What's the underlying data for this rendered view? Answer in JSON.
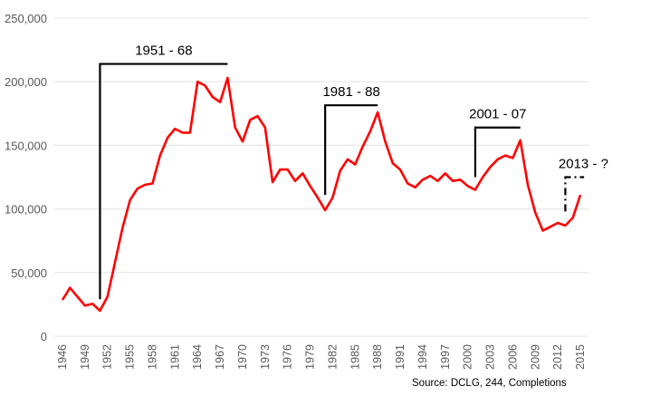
{
  "chart_data": {
    "type": "line",
    "title": "",
    "xlabel": "",
    "ylabel": "",
    "ylim": [
      0,
      250000
    ],
    "xlim": [
      1946,
      2015
    ],
    "yticks": [
      0,
      50000,
      100000,
      150000,
      200000,
      250000
    ],
    "ytick_labels": [
      "0",
      "50,000",
      "100,000",
      "150,000",
      "200,000",
      "250,000"
    ],
    "xtick_labels": [
      "1946",
      "1949",
      "1952",
      "1955",
      "1958",
      "1961",
      "1964",
      "1967",
      "1970",
      "1973",
      "1976",
      "1979",
      "1982",
      "1985",
      "1988",
      "1991",
      "1994",
      "1997",
      "2000",
      "2003",
      "2006",
      "2009",
      "2012",
      "2015"
    ],
    "grid": true,
    "series": [
      {
        "name": "Completions",
        "color": "#ff0000",
        "x": [
          1946,
          1947,
          1948,
          1949,
          1950,
          1951,
          1952,
          1953,
          1954,
          1955,
          1956,
          1957,
          1958,
          1959,
          1960,
          1961,
          1962,
          1963,
          1964,
          1965,
          1966,
          1967,
          1968,
          1969,
          1970,
          1971,
          1972,
          1973,
          1974,
          1975,
          1976,
          1977,
          1978,
          1979,
          1980,
          1981,
          1982,
          1983,
          1984,
          1985,
          1986,
          1987,
          1988,
          1989,
          1990,
          1991,
          1992,
          1993,
          1994,
          1995,
          1996,
          1997,
          1998,
          1999,
          2000,
          2001,
          2002,
          2003,
          2004,
          2005,
          2006,
          2007,
          2008,
          2009,
          2010,
          2011,
          2012,
          2013,
          2014,
          2015
        ],
        "values": [
          28500,
          38000,
          31000,
          24000,
          25500,
          20000,
          31000,
          58000,
          85000,
          107000,
          116000,
          119000,
          120000,
          142000,
          156000,
          163000,
          160000,
          160000,
          200000,
          197000,
          188000,
          184000,
          203000,
          164000,
          153000,
          170000,
          173000,
          164000,
          121000,
          131000,
          131000,
          122000,
          128000,
          118000,
          109000,
          99000,
          109000,
          130000,
          139000,
          135000,
          149000,
          161000,
          176000,
          153000,
          136000,
          131000,
          120000,
          117000,
          123000,
          126000,
          122000,
          128000,
          122000,
          123000,
          118000,
          115000,
          125000,
          133000,
          139000,
          142000,
          140000,
          154000,
          119000,
          97000,
          83000,
          86000,
          89000,
          87000,
          93000,
          111000
        ]
      }
    ],
    "annotations": [
      {
        "label": "1951 - 68",
        "start": 1951,
        "end": 1968,
        "y_bottom": 29000,
        "y_top": 214000,
        "style": "solid"
      },
      {
        "label": "1981 - 88",
        "start": 1981,
        "end": 1988,
        "y_bottom": 111000,
        "y_top": 181500,
        "style": "solid"
      },
      {
        "label": "2001 - 07",
        "start": 2001,
        "end": 2007,
        "y_bottom": 125000,
        "y_top": 164000,
        "style": "solid"
      },
      {
        "label": "2013 - ?",
        "start": 2013,
        "end": 2015.5,
        "y_bottom": 98000,
        "y_top": 125000,
        "style": "dashdot"
      }
    ],
    "source": "Source: DCLG, 244, Completions"
  }
}
